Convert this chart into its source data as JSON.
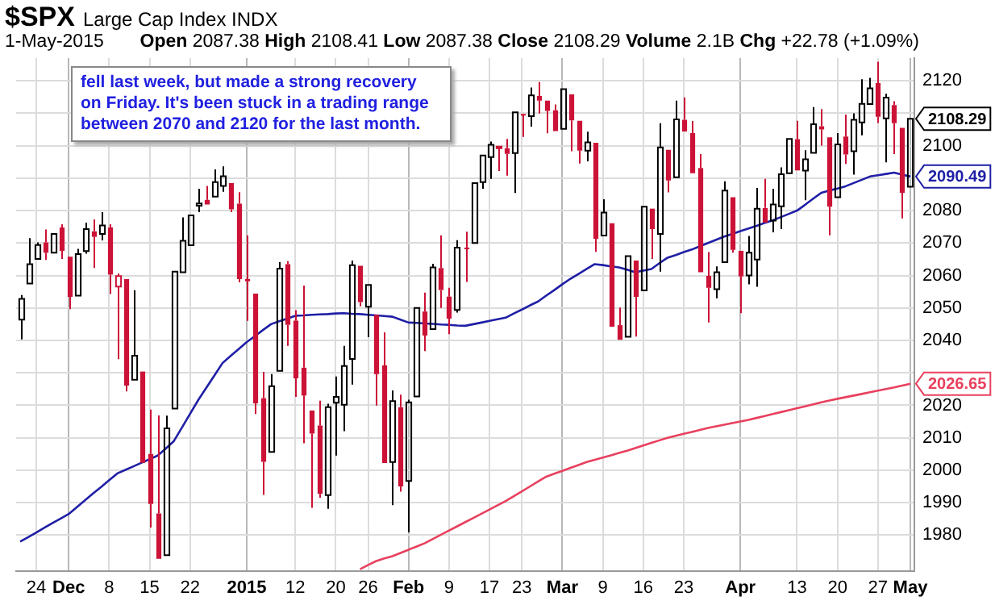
{
  "chart_data": {
    "type": "candlestick",
    "title": "$SPX",
    "subtitle": "Large Cap Index INDX",
    "categories": [
      null,
      null,
      "24",
      null,
      null,
      null,
      "Dec",
      null,
      null,
      null,
      null,
      "8",
      null,
      null,
      null,
      null,
      "15",
      null,
      null,
      null,
      null,
      "22",
      null,
      null,
      null,
      null,
      null,
      null,
      "2015",
      null,
      null,
      null,
      null,
      null,
      "12",
      null,
      null,
      null,
      null,
      "20",
      null,
      null,
      null,
      "26",
      null,
      null,
      null,
      null,
      "Feb",
      null,
      null,
      null,
      null,
      "9",
      null,
      null,
      null,
      null,
      "17",
      null,
      null,
      null,
      "23",
      null,
      null,
      null,
      null,
      "Mar",
      null,
      null,
      null,
      null,
      "9",
      null,
      null,
      null,
      null,
      "16",
      null,
      null,
      null,
      null,
      "23",
      null,
      null,
      null,
      null,
      null,
      null,
      "Apr",
      null,
      null,
      null,
      null,
      null,
      null,
      "13",
      null,
      null,
      null,
      null,
      "20",
      null,
      null,
      null,
      null,
      "27",
      null,
      null,
      null,
      "May"
    ],
    "series": [
      {
        "value_labels": [
          null,
          null,
          null,
          null,
          null,
          null,
          null,
          null,
          null,
          null,
          null,
          null,
          null,
          null,
          null,
          null,
          null,
          null,
          null,
          null,
          null,
          null,
          null,
          null,
          null,
          null,
          null,
          null,
          null,
          null,
          null,
          null,
          null,
          null,
          null,
          null,
          null,
          null,
          null,
          null,
          null,
          null,
          null,
          null,
          null,
          null,
          null,
          null,
          null,
          null,
          null,
          null,
          null,
          null,
          null,
          null,
          null,
          null,
          null,
          null,
          null,
          null,
          null,
          null,
          null,
          null,
          null,
          null,
          null,
          null,
          null,
          null,
          null,
          null,
          null,
          null,
          null,
          null,
          null,
          null,
          null,
          null,
          null,
          null,
          null,
          null,
          null,
          null,
          null,
          null,
          null,
          null,
          null,
          null,
          null,
          null,
          null,
          null,
          null,
          null,
          null,
          null,
          null,
          null,
          null,
          null,
          null,
          null,
          null,
          null,
          "2108.29"
        ],
        "colors": [
          "#000000",
          "#000000",
          "#000000",
          "#cc1236",
          "#000000",
          "#cc1236",
          "#cc1236",
          "#000000",
          "#000000",
          "#cc1236",
          "#000000",
          "#cc1236",
          "#cc1236",
          "#cc1236",
          "#000000",
          "#cc1236",
          "#cc1236",
          "#cc1236",
          "#000000",
          "#000000",
          "#000000",
          "#000000",
          "#000000",
          "#cc1236",
          "#000000",
          "#000000",
          "#cc1236",
          "#cc1236",
          "#cc1236",
          "#cc1236",
          "#cc1236",
          "#000000",
          "#000000",
          "#cc1236",
          "#cc1236",
          "#cc1236",
          "#cc1236",
          "#cc1236",
          "#000000",
          "#000000",
          "#000000",
          "#000000",
          "#cc1236",
          "#000000",
          "#cc1236",
          "#cc1236",
          "#000000",
          "#cc1236",
          "#000000",
          "#000000",
          "#cc1236",
          "#000000",
          "#cc1236",
          "#cc1236",
          "#000000",
          "#cc1236",
          "#000000",
          "#000000",
          "#000000",
          "#cc1236",
          "#cc1236",
          "#000000",
          "#cc1236",
          "#000000",
          "#cc1236",
          "#cc1236",
          "#cc1236",
          "#000000",
          "#cc1236",
          "#cc1236",
          "#000000",
          "#cc1236",
          "#000000",
          "#cc1236",
          "#cc1236",
          "#000000",
          "#cc1236",
          "#000000",
          "#cc1236",
          "#000000",
          "#cc1236",
          "#000000",
          "#cc1236",
          "#cc1236",
          "#cc1236",
          "#cc1236",
          "#000000",
          "#000000",
          "#cc1236",
          "#cc1236",
          "#000000",
          "#000000",
          "#cc1236",
          "#000000",
          "#000000",
          "#000000",
          "#cc1236",
          "#000000",
          "#000000",
          "#cc1236",
          "#cc1236",
          "#000000",
          "#cc1236",
          "#000000",
          "#000000",
          "#000000",
          "#cc1236",
          "#000000",
          "#cc1236",
          "#cc1236",
          "#000000"
        ],
        "ohlc": [
          [
            2046.4,
            2054,
            2040.3,
            2052.8
          ],
          [
            2057.5,
            2071.5,
            2056.8,
            2063.5
          ],
          [
            2065.1,
            2070.2,
            2065.1,
            2069.4
          ],
          [
            2070.2,
            2074.2,
            2064.8,
            2067
          ],
          [
            2067,
            2073.3,
            2066.8,
            2072.8
          ],
          [
            2074.8,
            2075.8,
            2065.1,
            2067.6
          ],
          [
            2065.8,
            2065.9,
            2049.6,
            2053.4
          ],
          [
            2053.8,
            2068.2,
            2053.8,
            2066.6
          ],
          [
            2067.5,
            2076.3,
            2066.7,
            2074.3
          ],
          [
            2073.6,
            2077.3,
            2062.3,
            2071.9
          ],
          [
            2072.8,
            2079.5,
            2070.8,
            2075.4
          ],
          [
            2074.8,
            2075.8,
            2054.3,
            2060.3
          ],
          [
            2056.6,
            2060.6,
            2034.2,
            2059.8
          ],
          [
            2058.9,
            2058.9,
            2024.3,
            2026.1
          ],
          [
            2027.9,
            2055.5,
            2027.9,
            2035.3
          ],
          [
            2030.4,
            2030.4,
            2002.3,
            2002.3
          ],
          [
            2005,
            2018.7,
            1982.3,
            1989.6
          ],
          [
            1986.7,
            2016.9,
            1972.6,
            1972.7
          ],
          [
            1973.8,
            2016.8,
            1973.8,
            2012.9
          ],
          [
            2019,
            2061.2,
            2019,
            2061.2
          ],
          [
            2061,
            2077.9,
            2061,
            2070.7
          ],
          [
            2069.3,
            2078.8,
            2069.3,
            2078.5
          ],
          [
            2081.5,
            2086.7,
            2079.5,
            2082.2
          ],
          [
            2083.3,
            2087.6,
            2081.9,
            2081.9
          ],
          [
            2084.3,
            2092.7,
            2084.3,
            2088.8
          ],
          [
            2087.6,
            2093.6,
            2085.8,
            2090.6
          ],
          [
            2088.5,
            2088.5,
            2079.5,
            2080.4
          ],
          [
            2082.1,
            2085.7,
            2057.9,
            2058.9
          ],
          [
            2058.9,
            2072.4,
            2046,
            2058.2
          ],
          [
            2054.4,
            2054.4,
            2017.3,
            2020.6
          ],
          [
            2022.2,
            2030.3,
            1992.4,
            2002.6
          ],
          [
            2005.6,
            2029.6,
            2005.6,
            2025.9
          ],
          [
            2030.6,
            2064.1,
            2030.6,
            2062.1
          ],
          [
            2063.5,
            2064.4,
            2038.3,
            2044.8
          ],
          [
            2046.1,
            2049.3,
            2022.6,
            2028.3
          ],
          [
            2031.6,
            2056.9,
            2008.3,
            2023
          ],
          [
            2018.4,
            2018.4,
            1988.4,
            2011.3
          ],
          [
            2013.8,
            2021.4,
            1991.5,
            1992.7
          ],
          [
            1992.3,
            2020.5,
            1988.1,
            2019.4
          ],
          [
            2020.8,
            2028.9,
            2004.5,
            2022.6
          ],
          [
            2020.2,
            2038.3,
            2012,
            2032.1
          ],
          [
            2034.3,
            2064.6,
            2026.4,
            2063.2
          ],
          [
            2063,
            2063,
            2050.5,
            2051.8
          ],
          [
            2050.4,
            2057.6,
            2041,
            2057.1
          ],
          [
            2047.9,
            2047.9,
            2019.9,
            2029.6
          ],
          [
            2032.3,
            2042.5,
            2001.5,
            2002.2
          ],
          [
            2002.5,
            2024.6,
            1989.2,
            2021.3
          ],
          [
            2019.4,
            2023.3,
            1993.4,
            1995
          ],
          [
            1996.7,
            2021.7,
            1980.9,
            2020.9
          ],
          [
            2022.7,
            2050.3,
            2022.7,
            2050
          ],
          [
            2048.9,
            2054.7,
            2036.7,
            2041.5
          ],
          [
            2043.5,
            2063.6,
            2043.5,
            2062.5
          ],
          [
            2062.3,
            2072.4,
            2050,
            2055.5
          ],
          [
            2053.5,
            2056.2,
            2041.9,
            2046.7
          ],
          [
            2049.4,
            2070.9,
            2048.6,
            2068.6
          ],
          [
            2068.6,
            2073.5,
            2058,
            2068.5
          ],
          [
            2070,
            2088.5,
            2070,
            2088.5
          ],
          [
            2088.8,
            2097,
            2086.7,
            2097
          ],
          [
            2096.5,
            2101.3,
            2089.8,
            2100.3
          ],
          [
            2099.2,
            2100.2,
            2092.2,
            2099.7
          ],
          [
            2099.2,
            2102.1,
            2090.8,
            2097.5
          ],
          [
            2097.7,
            2110.6,
            2085.4,
            2110.3
          ],
          [
            2109.8,
            2110.1,
            2102.7,
            2109.7
          ],
          [
            2109.1,
            2117.9,
            2105.9,
            2115.5
          ],
          [
            2115.3,
            2119.6,
            2109.9,
            2113.9
          ],
          [
            2113.9,
            2113.9,
            2103.8,
            2110.7
          ],
          [
            2110.9,
            2112.7,
            2103.8,
            2104.5
          ],
          [
            2105.2,
            2117.5,
            2104.5,
            2117.4
          ],
          [
            2115.8,
            2115.8,
            2098.3,
            2107.8
          ],
          [
            2107.7,
            2107.7,
            2094.5,
            2098.5
          ],
          [
            2098.5,
            2104.3,
            2095.2,
            2101
          ],
          [
            2100.9,
            2100.9,
            2067.3,
            2071.3
          ],
          [
            2072.3,
            2083.5,
            2072.2,
            2079.4
          ],
          [
            2076.1,
            2076.1,
            2044.2,
            2044.2
          ],
          [
            2044.7,
            2050.1,
            2039.7,
            2040.2
          ],
          [
            2041.1,
            2066.4,
            2041.1,
            2066
          ],
          [
            2064.6,
            2064.6,
            2041.2,
            2053.4
          ],
          [
            2055.4,
            2081.4,
            2055.4,
            2081.2
          ],
          [
            2080.6,
            2080.6,
            2065.1,
            2074.3
          ],
          [
            2072.8,
            2106.9,
            2061.2,
            2099.5
          ],
          [
            2098.7,
            2098.7,
            2085.6,
            2089.3
          ],
          [
            2090.3,
            2113.9,
            2090.3,
            2108.1
          ],
          [
            2108,
            2114.9,
            2104.4,
            2104.4
          ],
          [
            2103.9,
            2107.6,
            2091.5,
            2091.5
          ],
          [
            2093.1,
            2097.4,
            2061,
            2061
          ],
          [
            2059.9,
            2067.2,
            2045.5,
            2056.2
          ],
          [
            2055.8,
            2062.8,
            2053,
            2061
          ],
          [
            2064.1,
            2089,
            2064.1,
            2086.2
          ],
          [
            2084.1,
            2084.1,
            2067,
            2067.9
          ],
          [
            2067.6,
            2067.6,
            2048.4,
            2059.7
          ],
          [
            2060,
            2072.2,
            2057.3,
            2067
          ],
          [
            2064.9,
            2087,
            2056.5,
            2080.6
          ],
          [
            2080.8,
            2089.8,
            2076.1,
            2076.3
          ],
          [
            2076.9,
            2086.7,
            2073.3,
            2081.9
          ],
          [
            2081.3,
            2093.3,
            2074.3,
            2091.2
          ],
          [
            2091.5,
            2102.6,
            2091.5,
            2102.1
          ],
          [
            2102,
            2107.7,
            2092.3,
            2092.4
          ],
          [
            2092.3,
            2098.6,
            2083.2,
            2095.8
          ],
          [
            2097.8,
            2111.9,
            2097.8,
            2106.6
          ],
          [
            2106,
            2111.3,
            2100,
            2105
          ],
          [
            2102.6,
            2102.6,
            2072.4,
            2081.2
          ],
          [
            2084.1,
            2103.9,
            2084.1,
            2100.4
          ],
          [
            2102.8,
            2109.6,
            2094.4,
            2097.3
          ],
          [
            2098.3,
            2110,
            2091.1,
            2108
          ],
          [
            2107.2,
            2120.5,
            2103.2,
            2112.9
          ],
          [
            2112.8,
            2120.9,
            2112.8,
            2117.7
          ],
          [
            2119.3,
            2125.9,
            2107,
            2108.9
          ],
          [
            2108.4,
            2116,
            2094.9,
            2114.8
          ],
          [
            2112.5,
            2113.7,
            2097.4,
            2106.9
          ],
          [
            2105.5,
            2105.5,
            2077.6,
            2085.5
          ],
          [
            2087.38,
            2108.41,
            2087.38,
            2108.29
          ]
        ]
      },
      {
        "type": "line",
        "color": "#1f1fa6",
        "value_labels": [
          null,
          null,
          null,
          null,
          null,
          null,
          null,
          null,
          null,
          null,
          null,
          null,
          null,
          null,
          null,
          null,
          null,
          null,
          null,
          null,
          null,
          null,
          null,
          null,
          null,
          null,
          null,
          null,
          null,
          null,
          null,
          null,
          null,
          null,
          null,
          null,
          null,
          null,
          null,
          null,
          null,
          null,
          null,
          null,
          null,
          null,
          null,
          null,
          null,
          null,
          null,
          null,
          null,
          null,
          null,
          null,
          null,
          null,
          null,
          null,
          null,
          null,
          null,
          null,
          null,
          null,
          null,
          null,
          null,
          null,
          null,
          null,
          null,
          null,
          null,
          null,
          null,
          null,
          null,
          null,
          null,
          null,
          null,
          null,
          null,
          null,
          null,
          null,
          null,
          null,
          null,
          null,
          null,
          null,
          null,
          null,
          null,
          null,
          null,
          null,
          null,
          null,
          null,
          null,
          null,
          null,
          null,
          null,
          null,
          null,
          "2090.49"
        ],
        "values": [
          1978,
          1979.4,
          1980.8,
          1982.3,
          1983.7,
          1985.1,
          1986.5,
          1988.6,
          1990.7,
          1992.8,
          1994.8,
          1996.9,
          1999,
          2000.1,
          2001.2,
          2002.3,
          2003.4,
          2004.5,
          2006.7,
          2009,
          2013.2,
          2017.4,
          2021.6,
          2025.4,
          2029.2,
          2033,
          2035.2,
          2037.3,
          2039.5,
          2041.3,
          2043.2,
          2045,
          2045.9,
          2046.7,
          2047.6,
          2047.7,
          2047.9,
          2048,
          2048.1,
          2048.3,
          2048.4,
          2048.2,
          2048.1,
          2047.9,
          2047.7,
          2047.5,
          2047.3,
          2046.4,
          2045.5,
          2045.4,
          2045.2,
          2045.1,
          2044.9,
          2044.8,
          2044.6,
          2044.5,
          2045,
          2045.5,
          2046,
          2046.5,
          2047,
          2048.3,
          2049.5,
          2050.8,
          2052,
          2053.8,
          2055.5,
          2057.3,
          2059,
          2060.5,
          2062,
          2063.5,
          2063.2,
          2062.8,
          2062.5,
          2061.8,
          2061,
          2061.5,
          2062,
          2063.8,
          2065.5,
          2066.3,
          2067.2,
          2068,
          2069,
          2070,
          2071,
          2072,
          2072.8,
          2073.7,
          2074.5,
          2075.3,
          2076.2,
          2077,
          2078,
          2079,
          2080,
          2081.8,
          2083.7,
          2085.5,
          2086.2,
          2086.8,
          2087.5,
          2088.5,
          2089.5,
          2090.5,
          2090.9,
          2091.3,
          2091.7,
          2091.1,
          2090.49
        ]
      },
      {
        "type": "line",
        "color": "#e8405e",
        "value_labels": [
          null,
          null,
          null,
          null,
          null,
          null,
          null,
          null,
          null,
          null,
          null,
          null,
          null,
          null,
          null,
          null,
          null,
          null,
          null,
          null,
          null,
          null,
          null,
          null,
          null,
          null,
          null,
          null,
          null,
          null,
          null,
          null,
          null,
          null,
          null,
          null,
          null,
          null,
          null,
          null,
          null,
          null,
          null,
          null,
          null,
          null,
          null,
          null,
          null,
          null,
          null,
          null,
          null,
          null,
          null,
          null,
          null,
          null,
          null,
          null,
          null,
          null,
          null,
          null,
          null,
          null,
          null,
          null,
          null,
          null,
          null,
          null,
          null,
          null,
          null,
          null,
          null,
          null,
          null,
          null,
          null,
          null,
          null,
          null,
          null,
          null,
          null,
          null,
          null,
          null,
          null,
          null,
          null,
          null,
          null,
          null,
          null,
          null,
          null,
          null,
          null,
          null,
          null,
          null,
          null,
          null,
          null,
          null,
          null,
          null,
          "2026.65"
        ],
        "values": [
          null,
          null,
          null,
          null,
          null,
          null,
          null,
          null,
          null,
          null,
          null,
          null,
          null,
          null,
          null,
          null,
          null,
          null,
          null,
          null,
          null,
          null,
          null,
          null,
          null,
          null,
          null,
          null,
          null,
          null,
          null,
          null,
          null,
          null,
          null,
          null,
          null,
          null,
          null,
          null,
          null,
          null,
          1969.5,
          1970.8,
          1972,
          1972.8,
          1973.5,
          1974.5,
          1975.5,
          1976.5,
          1977.5,
          1978.8,
          1980.1,
          1981.4,
          1982.7,
          1984,
          1985.3,
          1986.6,
          1987.9,
          1989.2,
          1990.5,
          1992,
          1993.5,
          1995,
          1996.5,
          1998,
          1998.9,
          1999.8,
          2000.7,
          2001.6,
          2002.5,
          2003.2,
          2003.9,
          2004.6,
          2005.3,
          2006,
          2006.8,
          2007.6,
          2008.4,
          2009.2,
          2010,
          2010.6,
          2011.2,
          2011.8,
          2012.4,
          2013,
          2013.5,
          2014,
          2014.5,
          2015,
          2015.5,
          2016.1,
          2016.7,
          2017.3,
          2017.9,
          2018.5,
          2019.1,
          2019.7,
          2020.3,
          2020.9,
          2021.5,
          2022,
          2022.5,
          2023,
          2023.5,
          2024,
          2024.5,
          2025,
          2025.5,
          2026.1,
          2026.65
        ]
      }
    ],
    "ylim": [
      1969,
      2127
    ],
    "yticks": [
      1980,
      1990,
      2000,
      2010,
      2020,
      {
        "value": 2030,
        "label": null
      },
      2040,
      2050,
      2060,
      2070,
      2080,
      {
        "value": 2090,
        "label": null
      },
      2100,
      {
        "value": 2110,
        "label": null
      },
      2120
    ],
    "grid": true,
    "legend": false,
    "marker": "none",
    "line_style": "solid",
    "annotations": [
      "1-May-2015 Open 2087.38 High 2108.41 Low 2087.38 Close 2108.29 Volume 2.1B Chg +22.78 (+1.09%)",
      "fell last week, but made a strong recovery on Friday. It's been stuck in a trading range between 2070 and 2120 for the last month."
    ]
  }
}
